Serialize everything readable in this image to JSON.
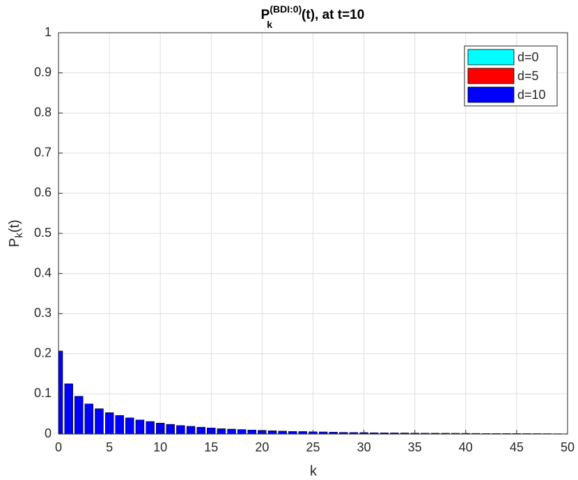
{
  "chart_data": {
    "type": "bar",
    "title": {
      "base": "P",
      "sub": "k",
      "sup": "(BDI:0)",
      "rest": "(t), at t=10"
    },
    "x_label": "k",
    "y_label": {
      "base": "P",
      "sub": "k",
      "rest": "(t)"
    },
    "x": [
      0,
      1,
      2,
      3,
      4,
      5,
      6,
      7,
      8,
      9,
      10,
      11,
      12,
      13,
      14,
      15,
      16,
      17,
      18,
      19,
      20,
      21,
      22,
      23,
      24,
      25,
      26,
      27,
      28,
      29,
      30,
      31,
      32,
      33,
      34,
      35,
      36,
      37,
      38,
      39,
      40,
      41,
      42,
      43,
      44,
      45,
      46,
      47,
      48,
      49,
      50
    ],
    "series": [
      {
        "name": "d=0",
        "color": "#00ffff",
        "values": [
          0.207,
          0.125,
          0.094,
          0.075,
          0.063,
          0.053,
          0.046,
          0.04,
          0.035,
          0.031,
          0.027,
          0.024,
          0.021,
          0.019,
          0.017,
          0.015,
          0.013,
          0.012,
          0.011,
          0.01,
          0.009,
          0.008,
          0.007,
          0.0065,
          0.006,
          0.0055,
          0.005,
          0.0045,
          0.004,
          0.0037,
          0.0034,
          0.0031,
          0.0028,
          0.0026,
          0.0024,
          0.0022,
          0.002,
          0.0018,
          0.0017,
          0.0016,
          0.0015,
          0.0014,
          0.0013,
          0.0012,
          0.0011,
          0.001,
          0.0009,
          0.0008,
          0.0007,
          0.0006,
          0.0005
        ]
      },
      {
        "name": "d=5",
        "color": "#ff0000",
        "values": [
          0.207,
          0.125,
          0.094,
          0.075,
          0.063,
          0.053,
          0.046,
          0.04,
          0.035,
          0.031,
          0.027,
          0.024,
          0.021,
          0.019,
          0.017,
          0.015,
          0.013,
          0.012,
          0.011,
          0.01,
          0.009,
          0.008,
          0.007,
          0.0065,
          0.006,
          0.0055,
          0.005,
          0.0045,
          0.004,
          0.0037,
          0.0034,
          0.0031,
          0.0028,
          0.0026,
          0.0024,
          0.0022,
          0.002,
          0.0018,
          0.0017,
          0.0016,
          0.0015,
          0.0014,
          0.0013,
          0.0012,
          0.0011,
          0.001,
          0.0009,
          0.0008,
          0.0007,
          0.0006,
          0.0005
        ]
      },
      {
        "name": "d=10",
        "color": "#0000ff",
        "values": [
          0.207,
          0.125,
          0.094,
          0.075,
          0.063,
          0.053,
          0.046,
          0.04,
          0.035,
          0.031,
          0.027,
          0.024,
          0.021,
          0.019,
          0.017,
          0.015,
          0.013,
          0.012,
          0.011,
          0.01,
          0.009,
          0.008,
          0.007,
          0.0065,
          0.006,
          0.0055,
          0.005,
          0.0045,
          0.004,
          0.0037,
          0.0034,
          0.0031,
          0.0028,
          0.0026,
          0.0024,
          0.0022,
          0.002,
          0.0018,
          0.0017,
          0.0016,
          0.0015,
          0.0014,
          0.0013,
          0.0012,
          0.0011,
          0.001,
          0.0009,
          0.0008,
          0.0007,
          0.0006,
          0.0005
        ]
      }
    ],
    "xlim": [
      0,
      50
    ],
    "xticks": [
      0,
      5,
      10,
      15,
      20,
      25,
      30,
      35,
      40,
      45,
      50
    ],
    "ylim": [
      0,
      1
    ],
    "yticks": [
      0,
      0.1,
      0.2,
      0.3,
      0.4,
      0.5,
      0.6,
      0.7,
      0.8,
      0.9,
      1
    ],
    "grid": true,
    "legend": "top-right"
  }
}
